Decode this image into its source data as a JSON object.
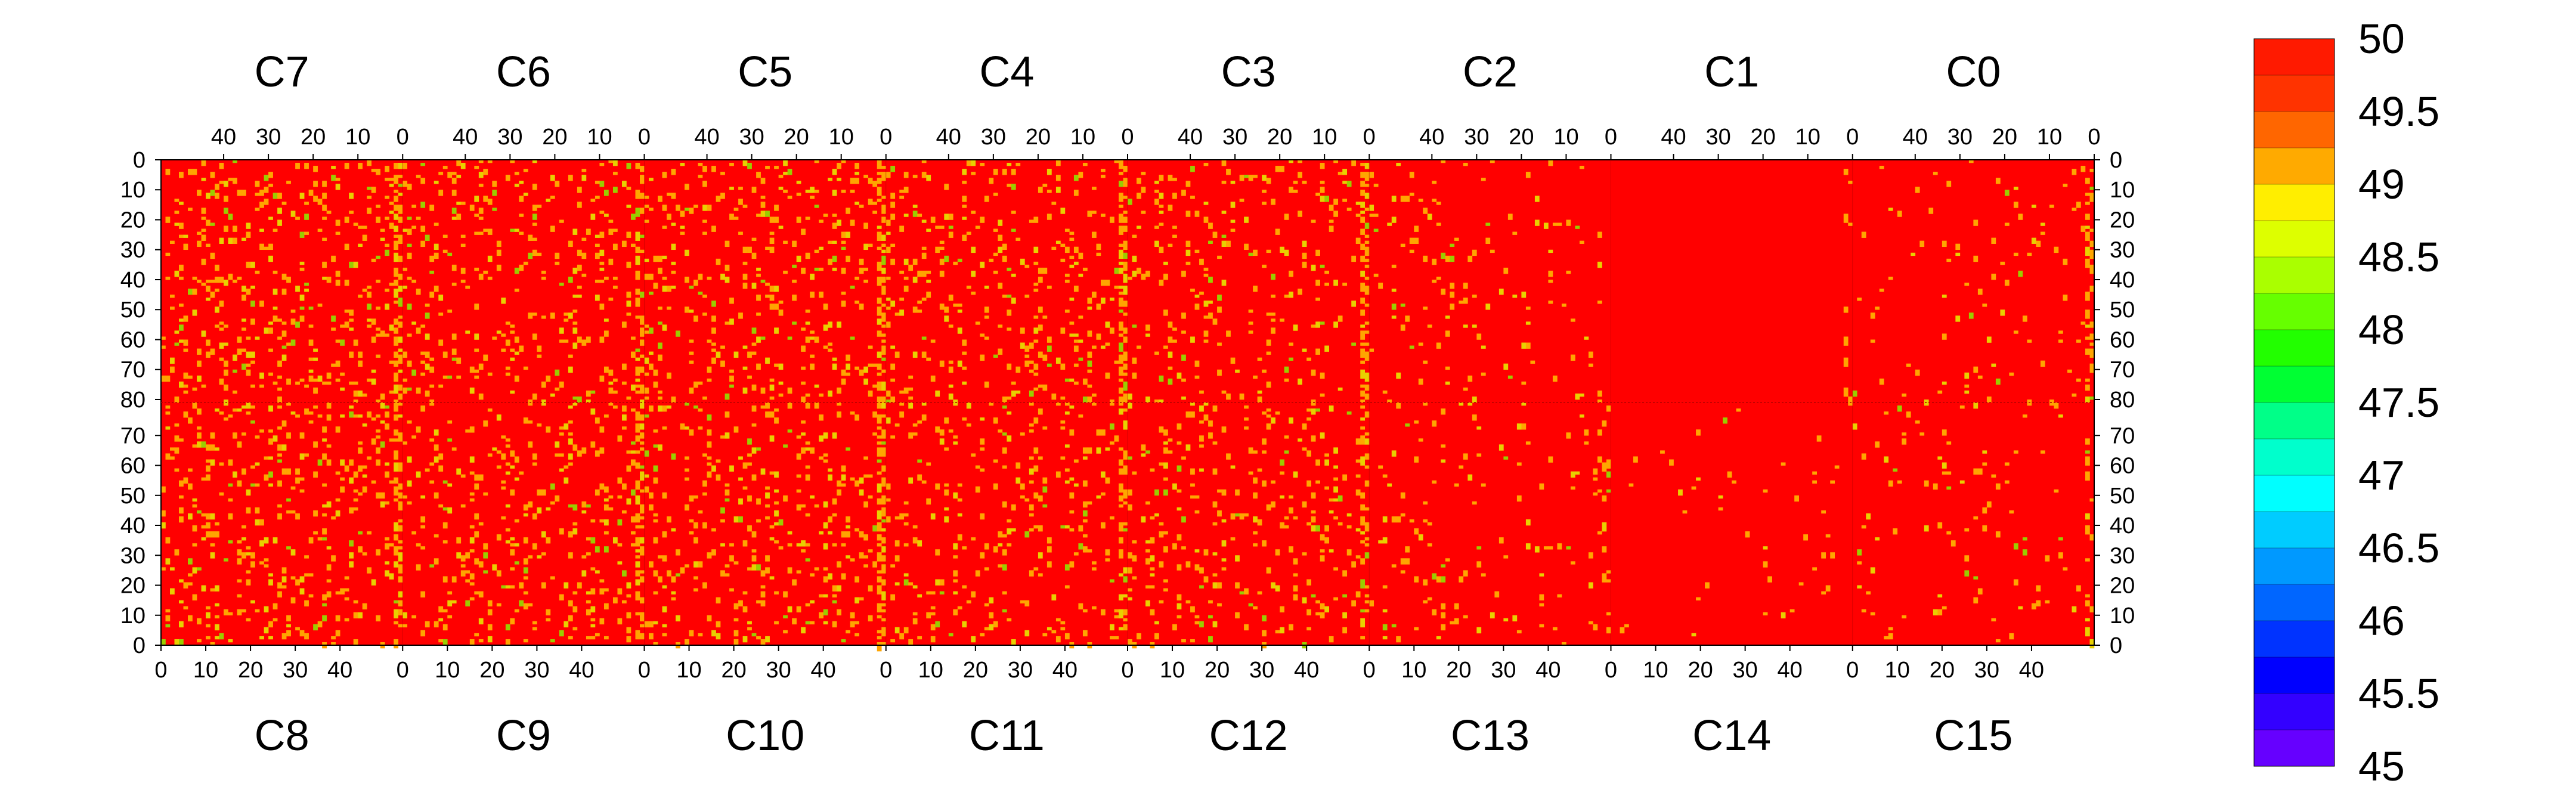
{
  "chart_data": {
    "type": "heatmap",
    "panels_top": [
      {
        "label": "C7"
      },
      {
        "label": "C6"
      },
      {
        "label": "C5"
      },
      {
        "label": "C4"
      },
      {
        "label": "C3"
      },
      {
        "label": "C2"
      },
      {
        "label": "C1"
      },
      {
        "label": "C0"
      }
    ],
    "panels_bottom": [
      {
        "label": "C8"
      },
      {
        "label": "C9"
      },
      {
        "label": "C10"
      },
      {
        "label": "C11"
      },
      {
        "label": "C12"
      },
      {
        "label": "C13"
      },
      {
        "label": "C14"
      },
      {
        "label": "C15"
      }
    ],
    "columns_per_panel": 54,
    "rows_per_half": 81,
    "top_x_ticks": [
      40,
      30,
      20,
      10,
      0
    ],
    "bottom_x_ticks": [
      0,
      10,
      20,
      30,
      40
    ],
    "top_x_direction": "reversed",
    "y_ticks_top_half": [
      0,
      10,
      20,
      30,
      40,
      50,
      60,
      70,
      80
    ],
    "y_ticks_bottom_half": [
      70,
      60,
      50,
      40,
      30,
      20,
      10,
      0
    ],
    "y_labels_left_and_right": true,
    "dominant_value": 50,
    "color_scale": {
      "min": 45,
      "max": 50,
      "labels": [
        "50",
        "49.5",
        "49",
        "48.5",
        "48",
        "47.5",
        "47",
        "46.5",
        "46",
        "45.5",
        "45"
      ],
      "colors_top_to_bottom": [
        "#ff1a00",
        "#ff3300",
        "#ff6600",
        "#ffaa00",
        "#ffee00",
        "#ddff00",
        "#aaff00",
        "#66ff00",
        "#22ff00",
        "#00ff33",
        "#00ff88",
        "#00ffcc",
        "#00ffff",
        "#00ccff",
        "#0099ff",
        "#0066ff",
        "#0033ff",
        "#0000ff",
        "#3300ff",
        "#6600ff"
      ]
    },
    "secondary_value_colors": [
      "#ffa500",
      "#e8d000",
      "#9acd00"
    ],
    "deviation_density_by_column_position": {
      "top_half": [
        0.09,
        0.07,
        0.08,
        0.08,
        0.05,
        0.03,
        0.0,
        0.02
      ],
      "bottom_half": [
        0.09,
        0.08,
        0.08,
        0.07,
        0.06,
        0.03,
        0.01,
        0.02
      ]
    },
    "edge_strip_density_by_panel": {
      "top_half": [
        0.45,
        0.32,
        0.55,
        0.6,
        0.58,
        0.0,
        0.05,
        0.35
      ],
      "bottom_half": [
        0.35,
        0.38,
        0.5,
        0.3,
        0.32,
        0.1,
        0.0,
        0.1
      ]
    }
  }
}
